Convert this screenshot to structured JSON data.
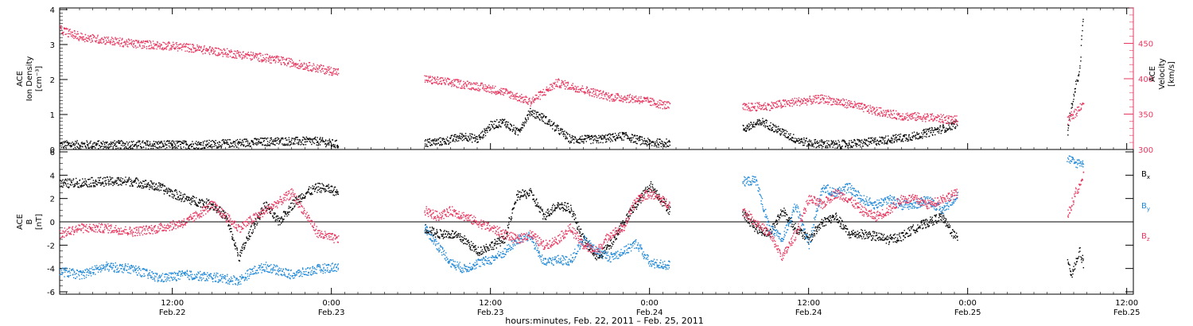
{
  "colors": {
    "black": "#000000",
    "pink": "#e8365e",
    "blue": "#1e88d8",
    "axis": "#000000"
  },
  "x_axis": {
    "title": "hours:minutes, Feb. 22, 2011 – Feb. 25, 2011",
    "range_hours": [
      3.5,
      84.5
    ],
    "ticks": [
      {
        "hour": 12,
        "time": "12:00",
        "date": "Feb.22"
      },
      {
        "hour": 24,
        "time": "0:00",
        "date": "Feb.23"
      },
      {
        "hour": 36,
        "time": "12:00",
        "date": "Feb.23"
      },
      {
        "hour": 48,
        "time": "0:00",
        "date": "Feb.24"
      },
      {
        "hour": 60,
        "time": "12:00",
        "date": "Feb.24"
      },
      {
        "hour": 72,
        "time": "0:00",
        "date": "Feb.25"
      },
      {
        "hour": 84,
        "time": "12:00",
        "date": "Feb.25"
      }
    ]
  },
  "chart_data": [
    {
      "type": "scatter",
      "panel": "top",
      "ylabel_left": [
        "ACE",
        "Ion Density",
        "[cm⁻³]"
      ],
      "ylabel_right": [
        "ACE",
        "Velocity",
        "[km/s]"
      ],
      "ylim_left": [
        0,
        4
      ],
      "yticks_left": [
        0,
        1,
        2,
        3,
        4
      ],
      "ylim_right": [
        300,
        500
      ],
      "yticks_right": [
        300,
        350,
        400,
        450
      ],
      "series": [
        {
          "axis": "left",
          "color_key": "black",
          "segments": [
            {
              "x": [
                3.5,
                7,
                10,
                14,
                17,
                20,
                23,
                24.5
              ],
              "y": [
                0.15,
                0.15,
                0.15,
                0.15,
                0.2,
                0.25,
                0.25,
                0.15
              ]
            },
            {
              "x": [
                31,
                32.5,
                34,
                35,
                36,
                37,
                38,
                39,
                40,
                42,
                44,
                46,
                47,
                48,
                49.5
              ],
              "y": [
                0.2,
                0.25,
                0.4,
                0.3,
                0.7,
                0.8,
                0.5,
                1.1,
                0.9,
                0.3,
                0.3,
                0.4,
                0.3,
                0.2,
                0.2
              ]
            },
            {
              "x": [
                55,
                56.5,
                58,
                59,
                60,
                62,
                64,
                66,
                68,
                70,
                71.2
              ],
              "y": [
                0.6,
                0.8,
                0.5,
                0.3,
                0.2,
                0.15,
                0.2,
                0.3,
                0.4,
                0.6,
                0.75
              ]
            },
            {
              "x": [
                79.5,
                79.8,
                80.1,
                80.4,
                80.7
              ],
              "y": [
                0.5,
                1.2,
                1.8,
                2.2,
                3.8
              ]
            }
          ]
        },
        {
          "axis": "right",
          "color_key": "pink",
          "segments": [
            {
              "x": [
                3.5,
                5,
                7,
                9,
                11,
                13,
                15,
                17,
                19,
                21,
                23,
                24.5
              ],
              "y": [
                470,
                460,
                455,
                450,
                448,
                445,
                440,
                435,
                430,
                423,
                415,
                410
              ]
            },
            {
              "x": [
                31,
                33,
                35,
                37,
                38,
                39,
                41,
                43,
                45,
                47,
                49.5
              ],
              "y": [
                400,
                395,
                390,
                382,
                375,
                368,
                395,
                385,
                375,
                372,
                362
              ]
            },
            {
              "x": [
                55,
                57,
                59,
                61,
                63,
                65,
                67,
                69,
                71.2
              ],
              "y": [
                360,
                362,
                368,
                372,
                365,
                355,
                348,
                346,
                342
              ]
            },
            {
              "x": [
                79.5,
                79.8,
                80.1,
                80.4,
                80.7
              ],
              "y": [
                340,
                348,
                352,
                360,
                368
              ]
            }
          ]
        }
      ]
    },
    {
      "type": "scatter",
      "panel": "bottom",
      "ylabel_left": [
        "ACE",
        "B",
        "[nT]"
      ],
      "ylim": [
        -6,
        6
      ],
      "yticks": [
        -6,
        -4,
        -2,
        0,
        2,
        4,
        6
      ],
      "legend": [
        {
          "text": "Bx",
          "color_key": "black"
        },
        {
          "text": "By",
          "color_key": "blue"
        },
        {
          "text": "Bz",
          "color_key": "pink"
        }
      ],
      "series": [
        {
          "name": "Bx",
          "color_key": "black",
          "segments": [
            {
              "x": [
                3.5,
                5,
                7,
                9,
                11,
                13,
                15,
                16,
                17,
                18,
                19,
                20,
                21,
                22,
                23,
                24,
                24.5
              ],
              "y": [
                3.3,
                3.4,
                3.5,
                3.5,
                3,
                2,
                1.5,
                0.5,
                -3,
                -0.5,
                1.5,
                0,
                1.5,
                2.5,
                3,
                2.8,
                2.5
              ]
            },
            {
              "x": [
                31,
                32,
                33,
                34,
                35,
                36,
                37,
                38,
                39,
                40,
                41,
                42,
                43,
                44,
                45,
                46,
                47,
                48,
                49.5
              ],
              "y": [
                -0.5,
                -1,
                -1,
                -1.5,
                -2.5,
                -2,
                -1.5,
                2.3,
                2.5,
                0.5,
                1.5,
                1.2,
                -1.5,
                -3,
                -2,
                0,
                1.5,
                3.2,
                1
              ]
            },
            {
              "x": [
                55,
                56,
                57,
                58,
                59,
                60,
                61,
                62,
                63,
                64,
                65,
                66,
                67,
                68,
                69,
                70,
                71.2
              ],
              "y": [
                0.8,
                -0.5,
                -1,
                1,
                -0.5,
                -1.5,
                0,
                0.5,
                -1,
                -1,
                -1.2,
                -1.5,
                -1.2,
                -0.5,
                0,
                0.5,
                -1.5
              ]
            },
            {
              "x": [
                79.5,
                79.8,
                80.1,
                80.4,
                80.7
              ],
              "y": [
                -3,
                -4.5,
                -3.5,
                -2.5,
                -3.5
              ]
            }
          ]
        },
        {
          "name": "By",
          "color_key": "blue",
          "segments": [
            {
              "x": [
                3.5,
                5,
                7,
                9,
                11,
                13,
                15,
                17,
                18,
                19,
                21,
                23,
                24.5
              ],
              "y": [
                -4.2,
                -4.5,
                -3.8,
                -4,
                -4.8,
                -4.5,
                -4.7,
                -5,
                -4.2,
                -3.8,
                -4.5,
                -4,
                -3.8
              ]
            },
            {
              "x": [
                31,
                32,
                33,
                34,
                35,
                36,
                37,
                38,
                39,
                40,
                41,
                42,
                43,
                44,
                45,
                46,
                47,
                48,
                49.5
              ],
              "y": [
                -0.5,
                -2,
                -3.5,
                -4,
                -3.5,
                -3.2,
                -2.6,
                -1.5,
                -1.2,
                -3.5,
                -3.2,
                -3.3,
                -1.5,
                -2.5,
                -3,
                -2.5,
                -1.8,
                -3.5,
                -3.7
              ]
            },
            {
              "x": [
                55,
                56,
                57,
                58,
                59,
                60,
                61,
                62,
                63,
                64,
                65,
                66,
                67,
                68,
                69,
                70,
                71.2
              ],
              "y": [
                3.5,
                3.6,
                -0.5,
                -1.5,
                1.5,
                -2,
                3,
                2.5,
                3,
                2,
                1.5,
                2,
                1.5,
                1.5,
                2,
                1,
                2.3
              ]
            },
            {
              "x": [
                79.5,
                79.8,
                80.1,
                80.4,
                80.7
              ],
              "y": [
                5.5,
                5.3,
                5,
                5.2,
                5
              ]
            }
          ]
        },
        {
          "name": "Bz",
          "color_key": "pink",
          "segments": [
            {
              "x": [
                3.5,
                5,
                7,
                9,
                11,
                13,
                15,
                17,
                19,
                21,
                23,
                24.5
              ],
              "y": [
                -1,
                -0.5,
                -0.5,
                -0.8,
                -0.5,
                0,
                1.5,
                -0.5,
                1,
                2.5,
                -1,
                -1.5
              ]
            },
            {
              "x": [
                31,
                32,
                33,
                34,
                35,
                36,
                37,
                38,
                39,
                40,
                41,
                42,
                43,
                44,
                45,
                46,
                47,
                48,
                49.5
              ],
              "y": [
                1,
                0.5,
                1,
                0.5,
                0,
                -0.5,
                -1,
                -1.5,
                -1,
                -2,
                -1.5,
                -0.5,
                -2,
                -2.5,
                -1,
                -0.5,
                2,
                2.5,
                1.5
              ]
            },
            {
              "x": [
                55,
                56,
                57,
                58,
                59,
                60,
                61,
                62,
                63,
                64,
                65,
                66,
                67,
                68,
                69,
                70,
                71.2
              ],
              "y": [
                1,
                0,
                -1,
                -3,
                -1,
                2,
                1.5,
                2.5,
                2,
                1,
                0.5,
                1,
                2,
                2,
                1.5,
                2,
                2.5
              ]
            },
            {
              "x": [
                79.5,
                79.8,
                80.1,
                80.4,
                80.7
              ],
              "y": [
                0.5,
                1.5,
                2.5,
                3,
                4
              ]
            }
          ]
        }
      ]
    }
  ]
}
